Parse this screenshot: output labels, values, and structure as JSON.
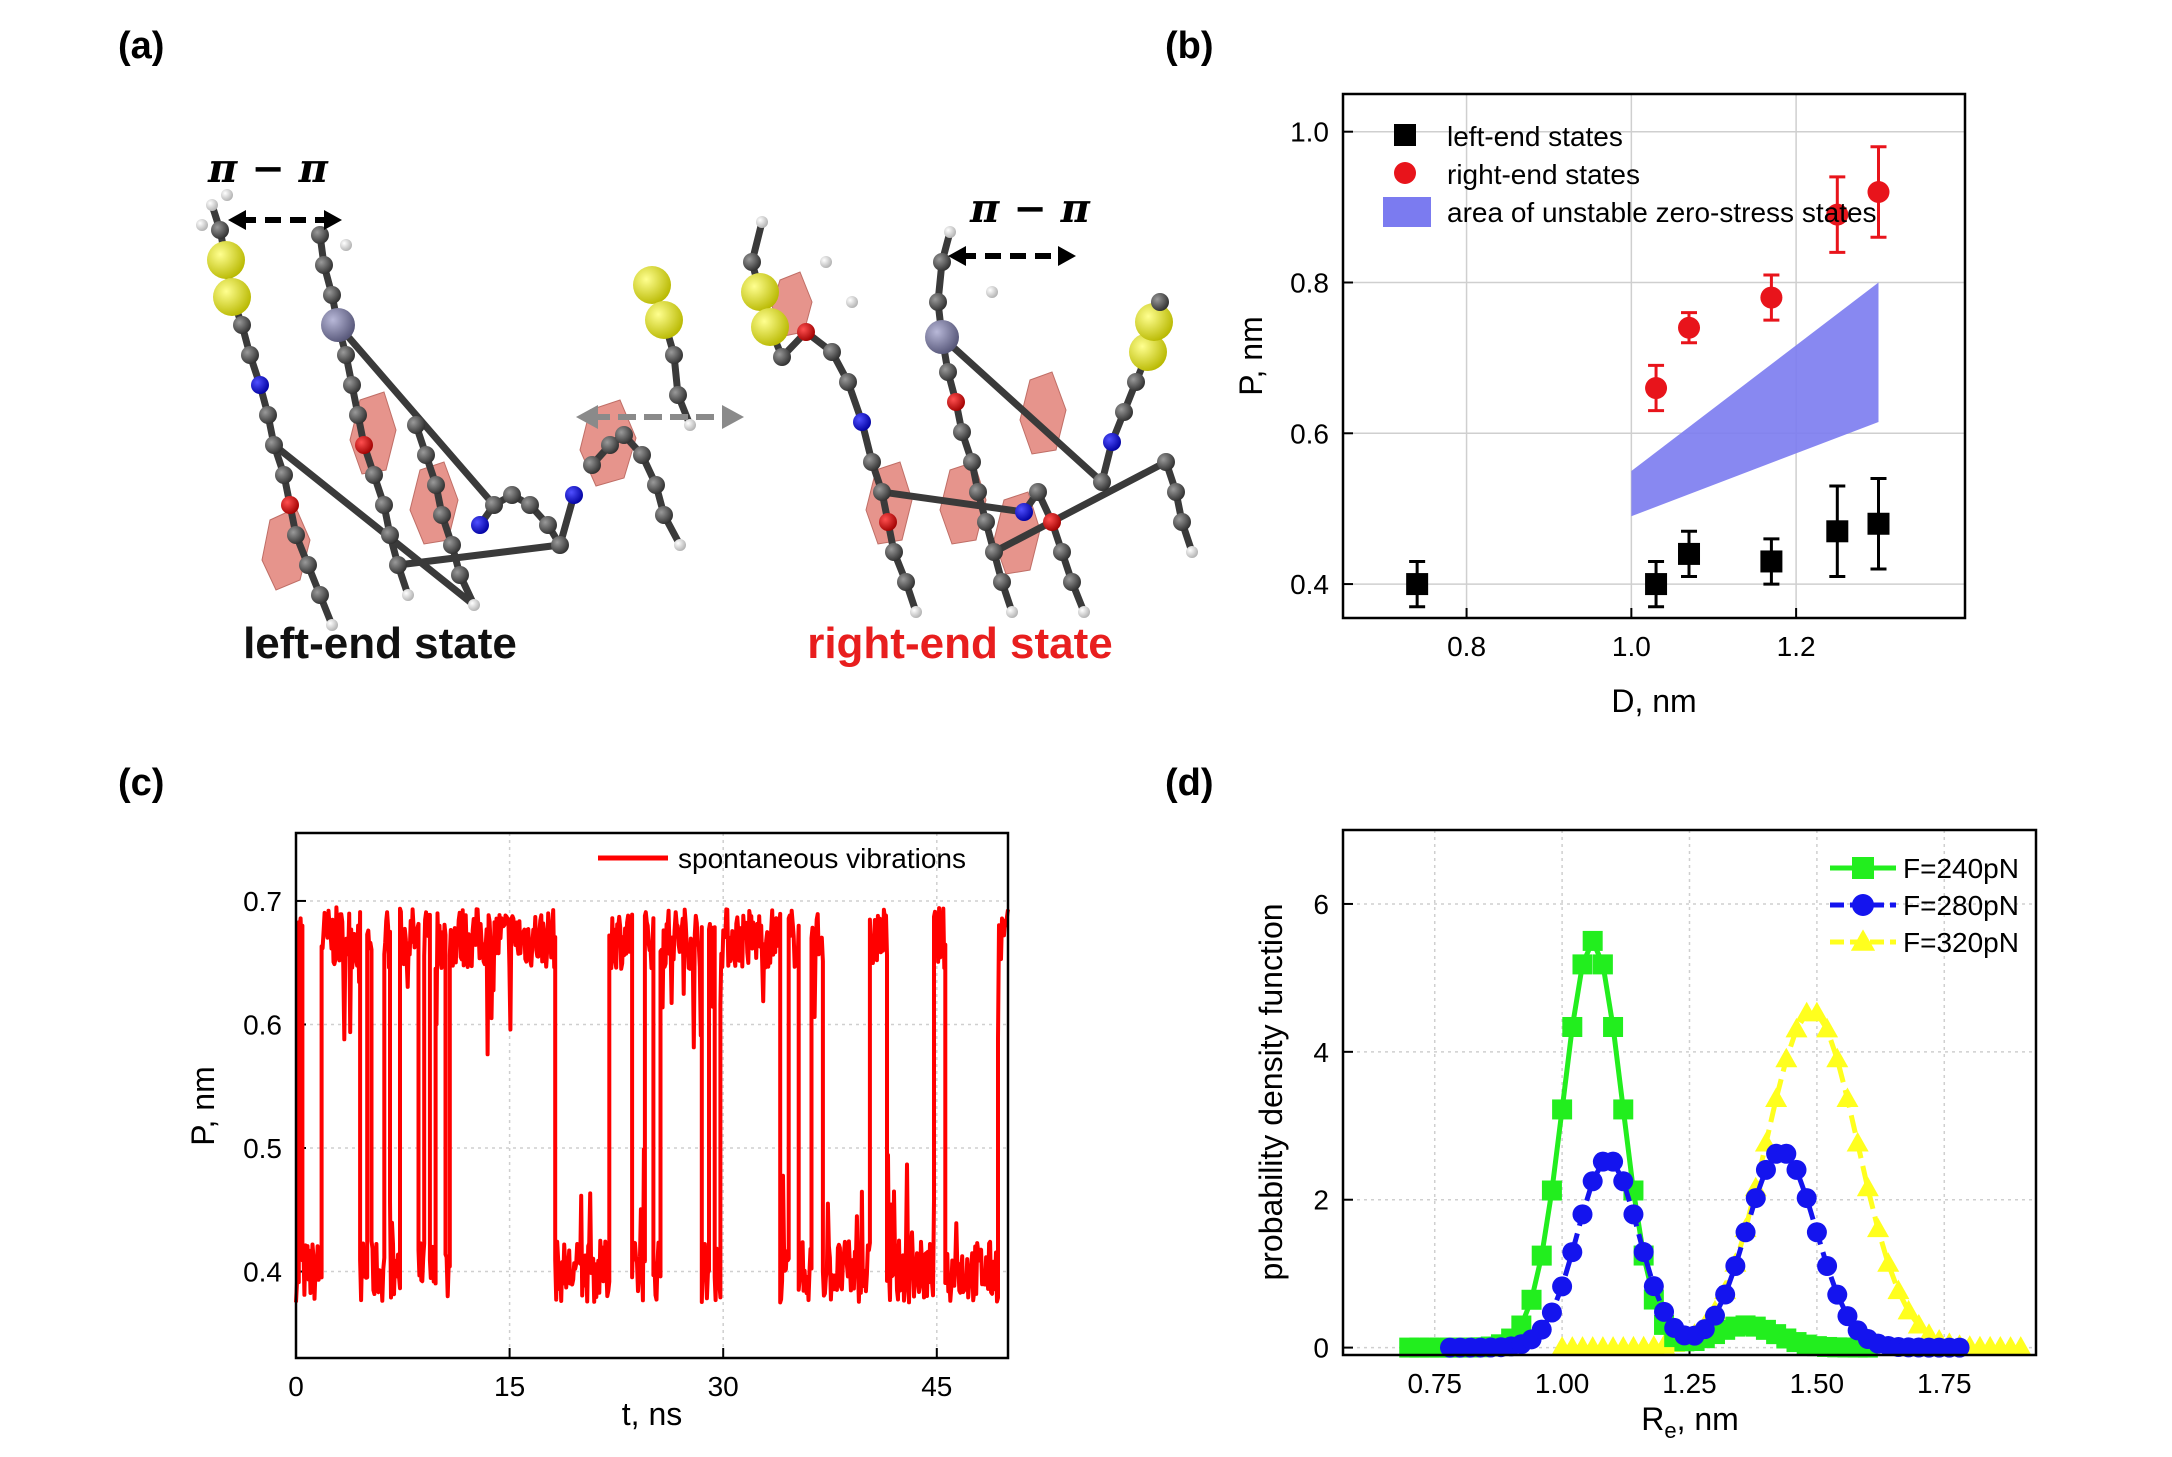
{
  "panels": {
    "a": {
      "label": "(a)",
      "pi_label": "π − π",
      "left_state": "left-end state",
      "right_state": "right-end state",
      "colors": {
        "left_state": "#111111",
        "right_state": "#e81e1e",
        "arrow": "#8a8a8a"
      }
    },
    "b": {
      "label": "(b)"
    },
    "c": {
      "label": "(c)"
    },
    "d": {
      "label": "(d)"
    }
  },
  "chart_data": [
    {
      "panel": "b",
      "type": "scatter",
      "xlabel": "D, nm",
      "ylabel": "P, nm",
      "xlim": [
        0.65,
        1.405
      ],
      "ylim": [
        0.355,
        1.05
      ],
      "xticks": [
        0.8,
        1.0,
        1.2
      ],
      "xtick_labels": [
        "0.8",
        "1.0",
        "1.2"
      ],
      "yticks": [
        0.4,
        0.6,
        0.8,
        1.0
      ],
      "ytick_labels": [
        "0.4",
        "0.6",
        "0.8",
        "1.0"
      ],
      "grid": true,
      "series": [
        {
          "name": "left-end states",
          "marker": "square",
          "color": "#000000",
          "x": [
            0.74,
            1.03,
            1.07,
            1.17,
            1.25,
            1.3
          ],
          "y": [
            0.4,
            0.4,
            0.44,
            0.43,
            0.47,
            0.48
          ],
          "err": [
            0.03,
            0.03,
            0.03,
            0.03,
            0.06,
            0.06
          ]
        },
        {
          "name": "right-end states",
          "marker": "circle",
          "color": "#e8141b",
          "x": [
            1.03,
            1.07,
            1.17,
            1.25,
            1.3
          ],
          "y": [
            0.66,
            0.74,
            0.78,
            0.89,
            0.92
          ],
          "err": [
            0.03,
            0.02,
            0.03,
            0.05,
            0.06
          ]
        }
      ],
      "band": {
        "name": "area of unstable zero-stress states",
        "color": "#7b7bf0",
        "x": [
          1.0,
          1.3
        ],
        "lower": [
          0.49,
          0.615
        ],
        "upper": [
          0.55,
          0.8
        ]
      }
    },
    {
      "panel": "c",
      "type": "line",
      "xlabel": "t, ns",
      "ylabel": "P, nm",
      "xlim": [
        0,
        50
      ],
      "ylim": [
        0.33,
        0.755
      ],
      "xticks": [
        0,
        15,
        30,
        45
      ],
      "xtick_labels": [
        "0",
        "15",
        "30",
        "45"
      ],
      "yticks": [
        0.4,
        0.5,
        0.6,
        0.7
      ],
      "ytick_labels": [
        "0.4",
        "0.5",
        "0.6",
        "0.7"
      ],
      "grid": true,
      "series": [
        {
          "name": "spontaneous vibrations",
          "color": "#ff0000"
        }
      ],
      "states": {
        "high_level": 0.67,
        "low_level": 0.4,
        "noise": 0.025
      },
      "segments": [
        [
          0,
          0.2,
          "L"
        ],
        [
          0.2,
          0.45,
          "H"
        ],
        [
          0.45,
          1.8,
          "L"
        ],
        [
          1.8,
          4.5,
          "H"
        ],
        [
          4.5,
          5.0,
          "L"
        ],
        [
          5.0,
          5.3,
          "H"
        ],
        [
          5.3,
          6.2,
          "L"
        ],
        [
          6.2,
          6.6,
          "H"
        ],
        [
          6.6,
          7.3,
          "L"
        ],
        [
          7.3,
          8.6,
          "H"
        ],
        [
          8.6,
          9.0,
          "L"
        ],
        [
          9.0,
          9.4,
          "H"
        ],
        [
          9.4,
          9.8,
          "L"
        ],
        [
          9.8,
          10.5,
          "H"
        ],
        [
          10.5,
          10.8,
          "L"
        ],
        [
          10.8,
          18.2,
          "H"
        ],
        [
          18.2,
          22.0,
          "L"
        ],
        [
          22.0,
          23.6,
          "H"
        ],
        [
          23.6,
          24.5,
          "L"
        ],
        [
          24.5,
          25.1,
          "H"
        ],
        [
          25.1,
          25.6,
          "L"
        ],
        [
          25.6,
          28.5,
          "H"
        ],
        [
          28.5,
          29.0,
          "L"
        ],
        [
          29.0,
          29.4,
          "H"
        ],
        [
          29.4,
          29.8,
          "L"
        ],
        [
          29.8,
          34.0,
          "H"
        ],
        [
          34.0,
          34.6,
          "L"
        ],
        [
          34.6,
          35.3,
          "H"
        ],
        [
          35.3,
          36.2,
          "L"
        ],
        [
          36.2,
          37.0,
          "H"
        ],
        [
          37.0,
          40.3,
          "L"
        ],
        [
          40.3,
          41.5,
          "H"
        ],
        [
          41.5,
          44.8,
          "L"
        ],
        [
          44.8,
          45.6,
          "H"
        ],
        [
          45.6,
          49.3,
          "L"
        ],
        [
          49.3,
          50,
          "H"
        ]
      ]
    },
    {
      "panel": "d",
      "type": "line",
      "xlabel": "R",
      "xlabel_sub": "e",
      "xlabel_rest": ", nm",
      "ylabel": "probability density function",
      "xlim": [
        0.57,
        1.93
      ],
      "ylim": [
        -0.1,
        7.0
      ],
      "xticks": [
        0.75,
        1.0,
        1.25,
        1.5,
        1.75
      ],
      "xtick_labels": [
        "0.75",
        "1.00",
        "1.25",
        "1.50",
        "1.75"
      ],
      "yticks": [
        0,
        2,
        4,
        6
      ],
      "ytick_labels": [
        "0",
        "2",
        "4",
        "6"
      ],
      "grid": true,
      "series": [
        {
          "name": "F=240pN",
          "marker": "square",
          "color": "#22ee1e",
          "dashed": false,
          "peaks": [
            {
              "mu": 1.06,
              "sigma": 0.058,
              "amp": 5.5
            },
            {
              "mu": 1.36,
              "sigma": 0.06,
              "amp": 0.3
            }
          ],
          "x_range": [
            0.7,
            1.6
          ]
        },
        {
          "name": "F=280pN",
          "marker": "circle",
          "color": "#1414ee",
          "dashed": true,
          "peaks": [
            {
              "mu": 1.09,
              "sigma": 0.06,
              "amp": 2.55
            },
            {
              "mu": 1.43,
              "sigma": 0.068,
              "amp": 2.65
            }
          ],
          "x_range": [
            0.78,
            1.78
          ]
        },
        {
          "name": "F=320pN",
          "marker": "triangle",
          "color": "#ffff1e",
          "dashed": true,
          "peaks": [
            {
              "mu": 1.49,
              "sigma": 0.09,
              "amp": 4.55
            }
          ],
          "x_range": [
            1.0,
            1.9
          ]
        }
      ]
    }
  ]
}
